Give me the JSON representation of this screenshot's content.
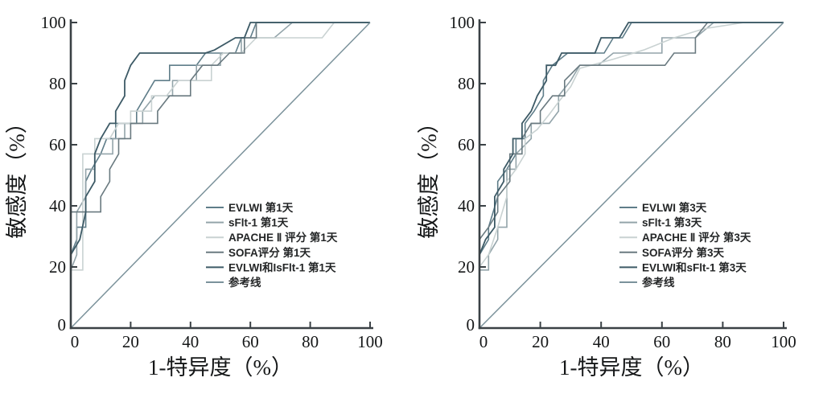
{
  "figure": {
    "background": "#ffffff"
  },
  "colors": {
    "axis": "#3a4145",
    "tick_text": "#151718",
    "legend_text": "#232526",
    "reference_line": "#7b929b"
  },
  "chart_data": [
    {
      "id": "roc-day1",
      "type": "line",
      "subtype": "roc-step",
      "title": "",
      "xlabel": "1-特异度（%）",
      "ylabel": "敏感度（%）",
      "xlim": [
        0,
        100
      ],
      "ylim": [
        0,
        100
      ],
      "xticks": [
        0,
        20,
        40,
        60,
        80,
        100
      ],
      "yticks": [
        0,
        20,
        40,
        60,
        80,
        100
      ],
      "grid": false,
      "legend_position": "inside-right-middle",
      "series": [
        {
          "name": "EVLWI 第1天",
          "color": "#5f7d89",
          "width": 1.6,
          "points": [
            [
              0,
              0
            ],
            [
              0,
              24
            ],
            [
              2,
              29
            ],
            [
              2,
              33
            ],
            [
              5,
              33
            ],
            [
              5,
              48
            ],
            [
              7,
              52
            ],
            [
              10,
              57
            ],
            [
              12,
              62
            ],
            [
              15,
              62
            ],
            [
              15,
              67
            ],
            [
              22,
              67
            ],
            [
              22,
              71
            ],
            [
              25,
              76
            ],
            [
              28,
              81
            ],
            [
              33,
              81
            ],
            [
              33,
              86
            ],
            [
              42,
              86
            ],
            [
              45,
              90
            ],
            [
              55,
              90
            ],
            [
              57,
              95
            ],
            [
              60,
              95
            ],
            [
              62,
              100
            ],
            [
              100,
              100
            ]
          ]
        },
        {
          "name": "sFlt-1 第1天",
          "color": "#93a4aa",
          "width": 1.6,
          "points": [
            [
              0,
              0
            ],
            [
              0,
              19
            ],
            [
              2,
              24
            ],
            [
              2,
              38
            ],
            [
              5,
              43
            ],
            [
              5,
              52
            ],
            [
              8,
              52
            ],
            [
              8,
              57
            ],
            [
              14,
              57
            ],
            [
              14,
              62
            ],
            [
              18,
              62
            ],
            [
              18,
              67
            ],
            [
              24,
              67
            ],
            [
              24,
              71
            ],
            [
              28,
              76
            ],
            [
              34,
              76
            ],
            [
              34,
              81
            ],
            [
              42,
              81
            ],
            [
              42,
              86
            ],
            [
              50,
              86
            ],
            [
              50,
              90
            ],
            [
              57,
              90
            ],
            [
              57,
              95
            ],
            [
              68,
              95
            ],
            [
              74,
              100
            ],
            [
              100,
              100
            ]
          ]
        },
        {
          "name": "APACHE Ⅱ 评分 第1天",
          "color": "#c9d2d2",
          "width": 1.6,
          "points": [
            [
              0,
              0
            ],
            [
              0,
              19
            ],
            [
              4,
              19
            ],
            [
              4,
              57
            ],
            [
              8,
              57
            ],
            [
              8,
              62
            ],
            [
              13,
              62
            ],
            [
              16,
              67
            ],
            [
              20,
              67
            ],
            [
              20,
              71
            ],
            [
              27,
              71
            ],
            [
              27,
              76
            ],
            [
              32,
              76
            ],
            [
              36,
              81
            ],
            [
              47,
              81
            ],
            [
              47,
              86
            ],
            [
              51,
              90
            ],
            [
              57,
              90
            ],
            [
              62,
              95
            ],
            [
              84,
              95
            ],
            [
              88,
              100
            ],
            [
              100,
              100
            ]
          ]
        },
        {
          "name": "SOFA评分 第1天",
          "color": "#6a7a80",
          "width": 1.6,
          "points": [
            [
              0,
              0
            ],
            [
              0,
              38
            ],
            [
              10,
              38
            ],
            [
              10,
              43
            ],
            [
              13,
              48
            ],
            [
              13,
              52
            ],
            [
              16,
              57
            ],
            [
              16,
              62
            ],
            [
              20,
              62
            ],
            [
              20,
              67
            ],
            [
              29,
              67
            ],
            [
              29,
              71
            ],
            [
              33,
              76
            ],
            [
              40,
              76
            ],
            [
              40,
              81
            ],
            [
              44,
              86
            ],
            [
              49,
              86
            ],
            [
              53,
              90
            ],
            [
              58,
              90
            ],
            [
              58,
              95
            ],
            [
              62,
              95
            ],
            [
              62,
              100
            ],
            [
              100,
              100
            ]
          ]
        },
        {
          "name": "EVLWI和IsFlt-1 第1天",
          "color": "#3d5a66",
          "width": 1.8,
          "points": [
            [
              0,
              0
            ],
            [
              0,
              24
            ],
            [
              3,
              29
            ],
            [
              5,
              38
            ],
            [
              5,
              43
            ],
            [
              8,
              48
            ],
            [
              8,
              57
            ],
            [
              10,
              62
            ],
            [
              13,
              67
            ],
            [
              15,
              67
            ],
            [
              15,
              71
            ],
            [
              18,
              76
            ],
            [
              18,
              81
            ],
            [
              20,
              86
            ],
            [
              23,
              90
            ],
            [
              45,
              90
            ],
            [
              48,
              91
            ],
            [
              55,
              95
            ],
            [
              58,
              95
            ],
            [
              60,
              100
            ],
            [
              100,
              100
            ]
          ]
        },
        {
          "name": "参考线",
          "color": "#7b929b",
          "width": 1.5,
          "points": [
            [
              0,
              0
            ],
            [
              100,
              100
            ]
          ]
        }
      ]
    },
    {
      "id": "roc-day3",
      "type": "line",
      "subtype": "roc-step",
      "title": "",
      "xlabel": "1-特异度（%）",
      "ylabel": "敏感度（%）",
      "xlim": [
        0,
        100
      ],
      "ylim": [
        0,
        100
      ],
      "xticks": [
        0,
        20,
        40,
        60,
        80,
        100
      ],
      "yticks": [
        0,
        20,
        40,
        60,
        80,
        100
      ],
      "grid": false,
      "legend_position": "inside-right-middle",
      "series": [
        {
          "name": "EVLWI 第3天",
          "color": "#5f7d89",
          "width": 1.6,
          "points": [
            [
              0,
              0
            ],
            [
              0,
              24
            ],
            [
              3,
              29
            ],
            [
              3,
              33
            ],
            [
              6,
              43
            ],
            [
              6,
              48
            ],
            [
              9,
              52
            ],
            [
              12,
              57
            ],
            [
              12,
              62
            ],
            [
              15,
              62
            ],
            [
              15,
              67
            ],
            [
              18,
              71
            ],
            [
              21,
              76
            ],
            [
              21,
              81
            ],
            [
              24,
              86
            ],
            [
              29,
              90
            ],
            [
              41,
              90
            ],
            [
              44,
              95
            ],
            [
              47,
              95
            ],
            [
              50,
              100
            ],
            [
              100,
              100
            ]
          ]
        },
        {
          "name": "sFlt-1 第3天",
          "color": "#93a4aa",
          "width": 1.6,
          "points": [
            [
              0,
              0
            ],
            [
              0,
              19
            ],
            [
              3,
              19
            ],
            [
              3,
              24
            ],
            [
              6,
              29
            ],
            [
              6,
              33
            ],
            [
              9,
              33
            ],
            [
              9,
              52
            ],
            [
              12,
              52
            ],
            [
              12,
              57
            ],
            [
              17,
              62
            ],
            [
              17,
              67
            ],
            [
              23,
              67
            ],
            [
              26,
              71
            ],
            [
              26,
              76
            ],
            [
              30,
              81
            ],
            [
              33,
              86
            ],
            [
              39,
              86
            ],
            [
              44,
              90
            ],
            [
              60,
              90
            ],
            [
              60,
              95
            ],
            [
              71,
              95
            ],
            [
              77,
              100
            ],
            [
              100,
              100
            ]
          ]
        },
        {
          "name": "APACHE Ⅱ 评分 第3天",
          "color": "#c9d2d2",
          "width": 1.6,
          "points": [
            [
              0,
              0
            ],
            [
              0,
              20
            ],
            [
              3,
              24
            ],
            [
              6,
              33
            ],
            [
              9,
              43
            ],
            [
              9,
              48
            ],
            [
              12,
              52
            ],
            [
              15,
              57
            ],
            [
              15,
              62
            ],
            [
              19,
              65
            ],
            [
              23,
              70
            ],
            [
              26,
              74
            ],
            [
              30,
              79
            ],
            [
              33,
              85
            ],
            [
              44,
              88
            ],
            [
              54,
              91
            ],
            [
              64,
              95
            ],
            [
              74,
              98
            ],
            [
              87,
              100
            ],
            [
              100,
              100
            ]
          ]
        },
        {
          "name": "SOFA评分 第3天",
          "color": "#6a7a80",
          "width": 1.6,
          "points": [
            [
              0,
              0
            ],
            [
              0,
              29
            ],
            [
              3,
              33
            ],
            [
              6,
              38
            ],
            [
              6,
              43
            ],
            [
              10,
              48
            ],
            [
              10,
              57
            ],
            [
              14,
              57
            ],
            [
              14,
              62
            ],
            [
              17,
              67
            ],
            [
              20,
              67
            ],
            [
              20,
              71
            ],
            [
              24,
              76
            ],
            [
              28,
              76
            ],
            [
              28,
              81
            ],
            [
              33,
              86
            ],
            [
              61,
              86
            ],
            [
              64,
              90
            ],
            [
              71,
              90
            ],
            [
              71,
              95
            ],
            [
              75,
              100
            ],
            [
              100,
              100
            ]
          ]
        },
        {
          "name": "EVLWI和sFlt-1 第3天",
          "color": "#3d5a66",
          "width": 1.8,
          "points": [
            [
              0,
              0
            ],
            [
              0,
              24
            ],
            [
              2,
              29
            ],
            [
              5,
              33
            ],
            [
              5,
              43
            ],
            [
              8,
              48
            ],
            [
              8,
              52
            ],
            [
              11,
              57
            ],
            [
              11,
              62
            ],
            [
              14,
              62
            ],
            [
              14,
              67
            ],
            [
              17,
              71
            ],
            [
              19,
              76
            ],
            [
              22,
              81
            ],
            [
              22,
              86
            ],
            [
              25,
              86
            ],
            [
              27,
              90
            ],
            [
              38,
              90
            ],
            [
              40,
              95
            ],
            [
              46,
              95
            ],
            [
              49,
              100
            ],
            [
              100,
              100
            ]
          ]
        },
        {
          "name": "参考线",
          "color": "#7b929b",
          "width": 1.5,
          "points": [
            [
              0,
              0
            ],
            [
              100,
              100
            ]
          ]
        }
      ]
    }
  ]
}
